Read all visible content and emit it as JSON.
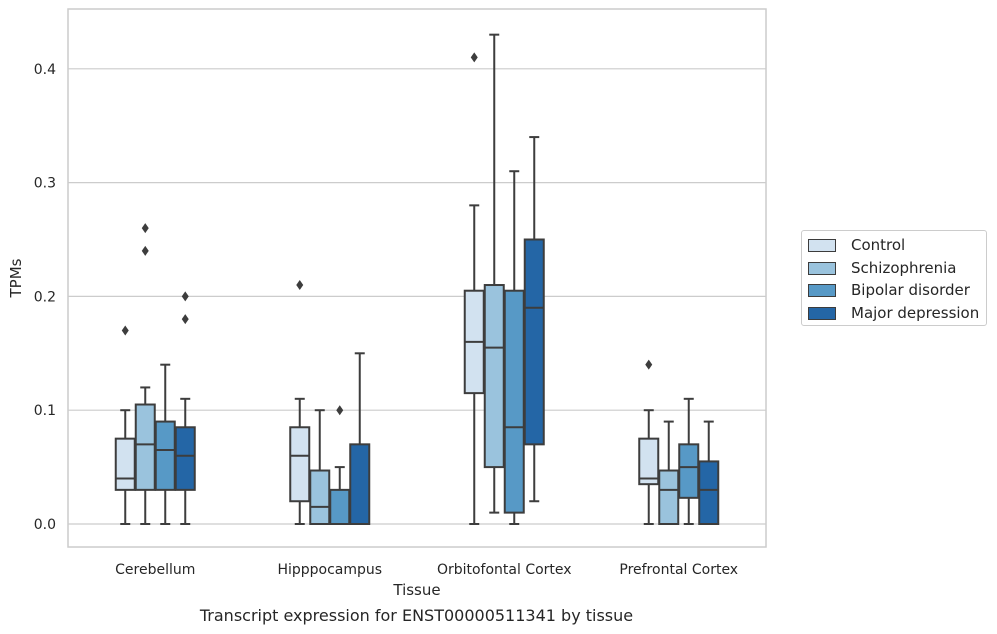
{
  "chart_data": {
    "type": "boxplot",
    "caption": "Transcript expression for ENST00000511341 by tissue",
    "xlabel": "Tissue",
    "ylabel": "TPMs",
    "ylim": [
      -0.02,
      0.455
    ],
    "yticks": [
      "0.0",
      "0.1",
      "0.2",
      "0.3",
      "0.4"
    ],
    "ytick_values": [
      0.0,
      0.1,
      0.2,
      0.3,
      0.4
    ],
    "grid": true,
    "legend_position": "right",
    "categories": [
      "Cerebellum",
      "Hipppocampus",
      "Orbitofontal Cortex",
      "Prefrontal Cortex"
    ],
    "series": [
      {
        "name": "Control",
        "color": "#d2e2f0",
        "boxes": [
          {
            "whisker_low": 0.0,
            "q1": 0.03,
            "median": 0.04,
            "q3": 0.075,
            "whisker_high": 0.1,
            "outliers": [
              0.17
            ]
          },
          {
            "whisker_low": 0.0,
            "q1": 0.02,
            "median": 0.06,
            "q3": 0.085,
            "whisker_high": 0.11,
            "outliers": [
              0.21
            ]
          },
          {
            "whisker_low": 0.0,
            "q1": 0.115,
            "median": 0.16,
            "q3": 0.205,
            "whisker_high": 0.28,
            "outliers": [
              0.41
            ]
          },
          {
            "whisker_low": 0.0,
            "q1": 0.035,
            "median": 0.04,
            "q3": 0.075,
            "whisker_high": 0.1,
            "outliers": [
              0.14
            ]
          }
        ]
      },
      {
        "name": "Schizophrenia",
        "color": "#9ac3dd",
        "boxes": [
          {
            "whisker_low": 0.0,
            "q1": 0.03,
            "median": 0.07,
            "q3": 0.105,
            "whisker_high": 0.12,
            "outliers": [
              0.24,
              0.26
            ]
          },
          {
            "whisker_low": 0.0,
            "q1": 0.0,
            "median": 0.015,
            "q3": 0.047,
            "whisker_high": 0.1,
            "outliers": []
          },
          {
            "whisker_low": 0.01,
            "q1": 0.05,
            "median": 0.155,
            "q3": 0.21,
            "whisker_high": 0.43,
            "outliers": []
          },
          {
            "whisker_low": 0.0,
            "q1": 0.0,
            "median": 0.03,
            "q3": 0.047,
            "whisker_high": 0.09,
            "outliers": []
          }
        ]
      },
      {
        "name": "Bipolar disorder",
        "color": "#5799c6",
        "boxes": [
          {
            "whisker_low": 0.0,
            "q1": 0.03,
            "median": 0.065,
            "q3": 0.09,
            "whisker_high": 0.14,
            "outliers": []
          },
          {
            "whisker_low": 0.0,
            "q1": 0.0,
            "median": 0.0,
            "q3": 0.03,
            "whisker_high": 0.05,
            "outliers": [
              0.1
            ]
          },
          {
            "whisker_low": 0.0,
            "q1": 0.01,
            "median": 0.085,
            "q3": 0.205,
            "whisker_high": 0.31,
            "outliers": []
          },
          {
            "whisker_low": 0.0,
            "q1": 0.023,
            "median": 0.05,
            "q3": 0.07,
            "whisker_high": 0.11,
            "outliers": []
          }
        ]
      },
      {
        "name": "Major depression",
        "color": "#2466a6",
        "boxes": [
          {
            "whisker_low": 0.0,
            "q1": 0.03,
            "median": 0.06,
            "q3": 0.085,
            "whisker_high": 0.11,
            "outliers": [
              0.18,
              0.2
            ]
          },
          {
            "whisker_low": 0.0,
            "q1": 0.0,
            "median": 0.0,
            "q3": 0.07,
            "whisker_high": 0.15,
            "outliers": []
          },
          {
            "whisker_low": 0.02,
            "q1": 0.07,
            "median": 0.19,
            "q3": 0.25,
            "whisker_high": 0.34,
            "outliers": []
          },
          {
            "whisker_low": 0.0,
            "q1": 0.0,
            "median": 0.03,
            "q3": 0.055,
            "whisker_high": 0.09,
            "outliers": []
          }
        ]
      }
    ]
  }
}
